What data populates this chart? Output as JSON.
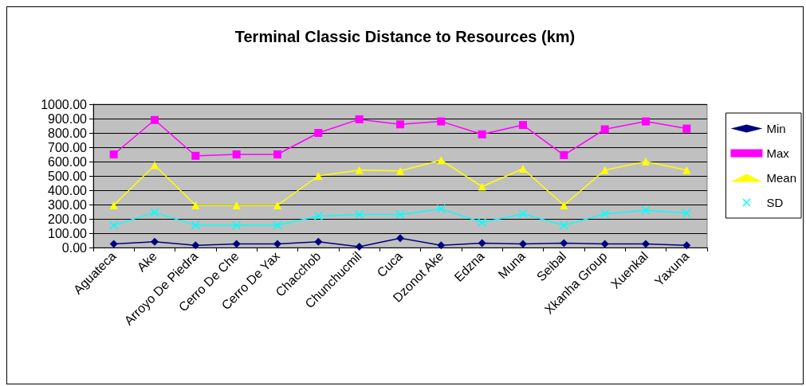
{
  "chart_data": {
    "type": "line",
    "title": "Terminal Classic Distance to Resources (km)",
    "categories": [
      "Aguateca",
      "Ake",
      "Arroyo De Piedra",
      "Cerro De Che",
      "Cerro De Yax",
      "Chacchob",
      "Chunchucmil",
      "Cuca",
      "Dzonot Ake",
      "Edzna",
      "Muna",
      "Seibal",
      "Xkanha Group",
      "Xuenkal",
      "Yaxuna"
    ],
    "series": [
      {
        "name": "Min",
        "color": "#000080",
        "marker": "diamond",
        "values": [
          25,
          40,
          15,
          25,
          25,
          40,
          5,
          65,
          15,
          30,
          25,
          30,
          25,
          25,
          15
        ]
      },
      {
        "name": "Max",
        "color": "#ff00ff",
        "marker": "square",
        "values": [
          650,
          890,
          640,
          650,
          650,
          800,
          895,
          860,
          880,
          790,
          855,
          645,
          825,
          880,
          830
        ]
      },
      {
        "name": "Mean",
        "color": "#ffff00",
        "marker": "triangle",
        "values": [
          295,
          575,
          295,
          295,
          295,
          500,
          540,
          535,
          610,
          425,
          550,
          295,
          540,
          600,
          540
        ]
      },
      {
        "name": "SD",
        "color": "#00ffff",
        "marker": "cross",
        "values": [
          155,
          245,
          155,
          155,
          155,
          220,
          230,
          230,
          270,
          175,
          235,
          155,
          235,
          260,
          240
        ]
      }
    ],
    "ylim": [
      0,
      1000
    ],
    "yticks": [
      {
        "value": 0,
        "label": "0.00"
      },
      {
        "value": 100,
        "label": "100.00"
      },
      {
        "value": 200,
        "label": "200.00"
      },
      {
        "value": 300,
        "label": "300.00"
      },
      {
        "value": 400,
        "label": "400.00"
      },
      {
        "value": 500,
        "label": "500.00"
      },
      {
        "value": 600,
        "label": "600.00"
      },
      {
        "value": 700,
        "label": "700.00"
      },
      {
        "value": 800,
        "label": "800.00"
      },
      {
        "value": 900,
        "label": "900.00"
      },
      {
        "value": 1000,
        "label": "1000.00"
      }
    ],
    "grid": "y",
    "legend": "right",
    "line_style": "solid"
  }
}
